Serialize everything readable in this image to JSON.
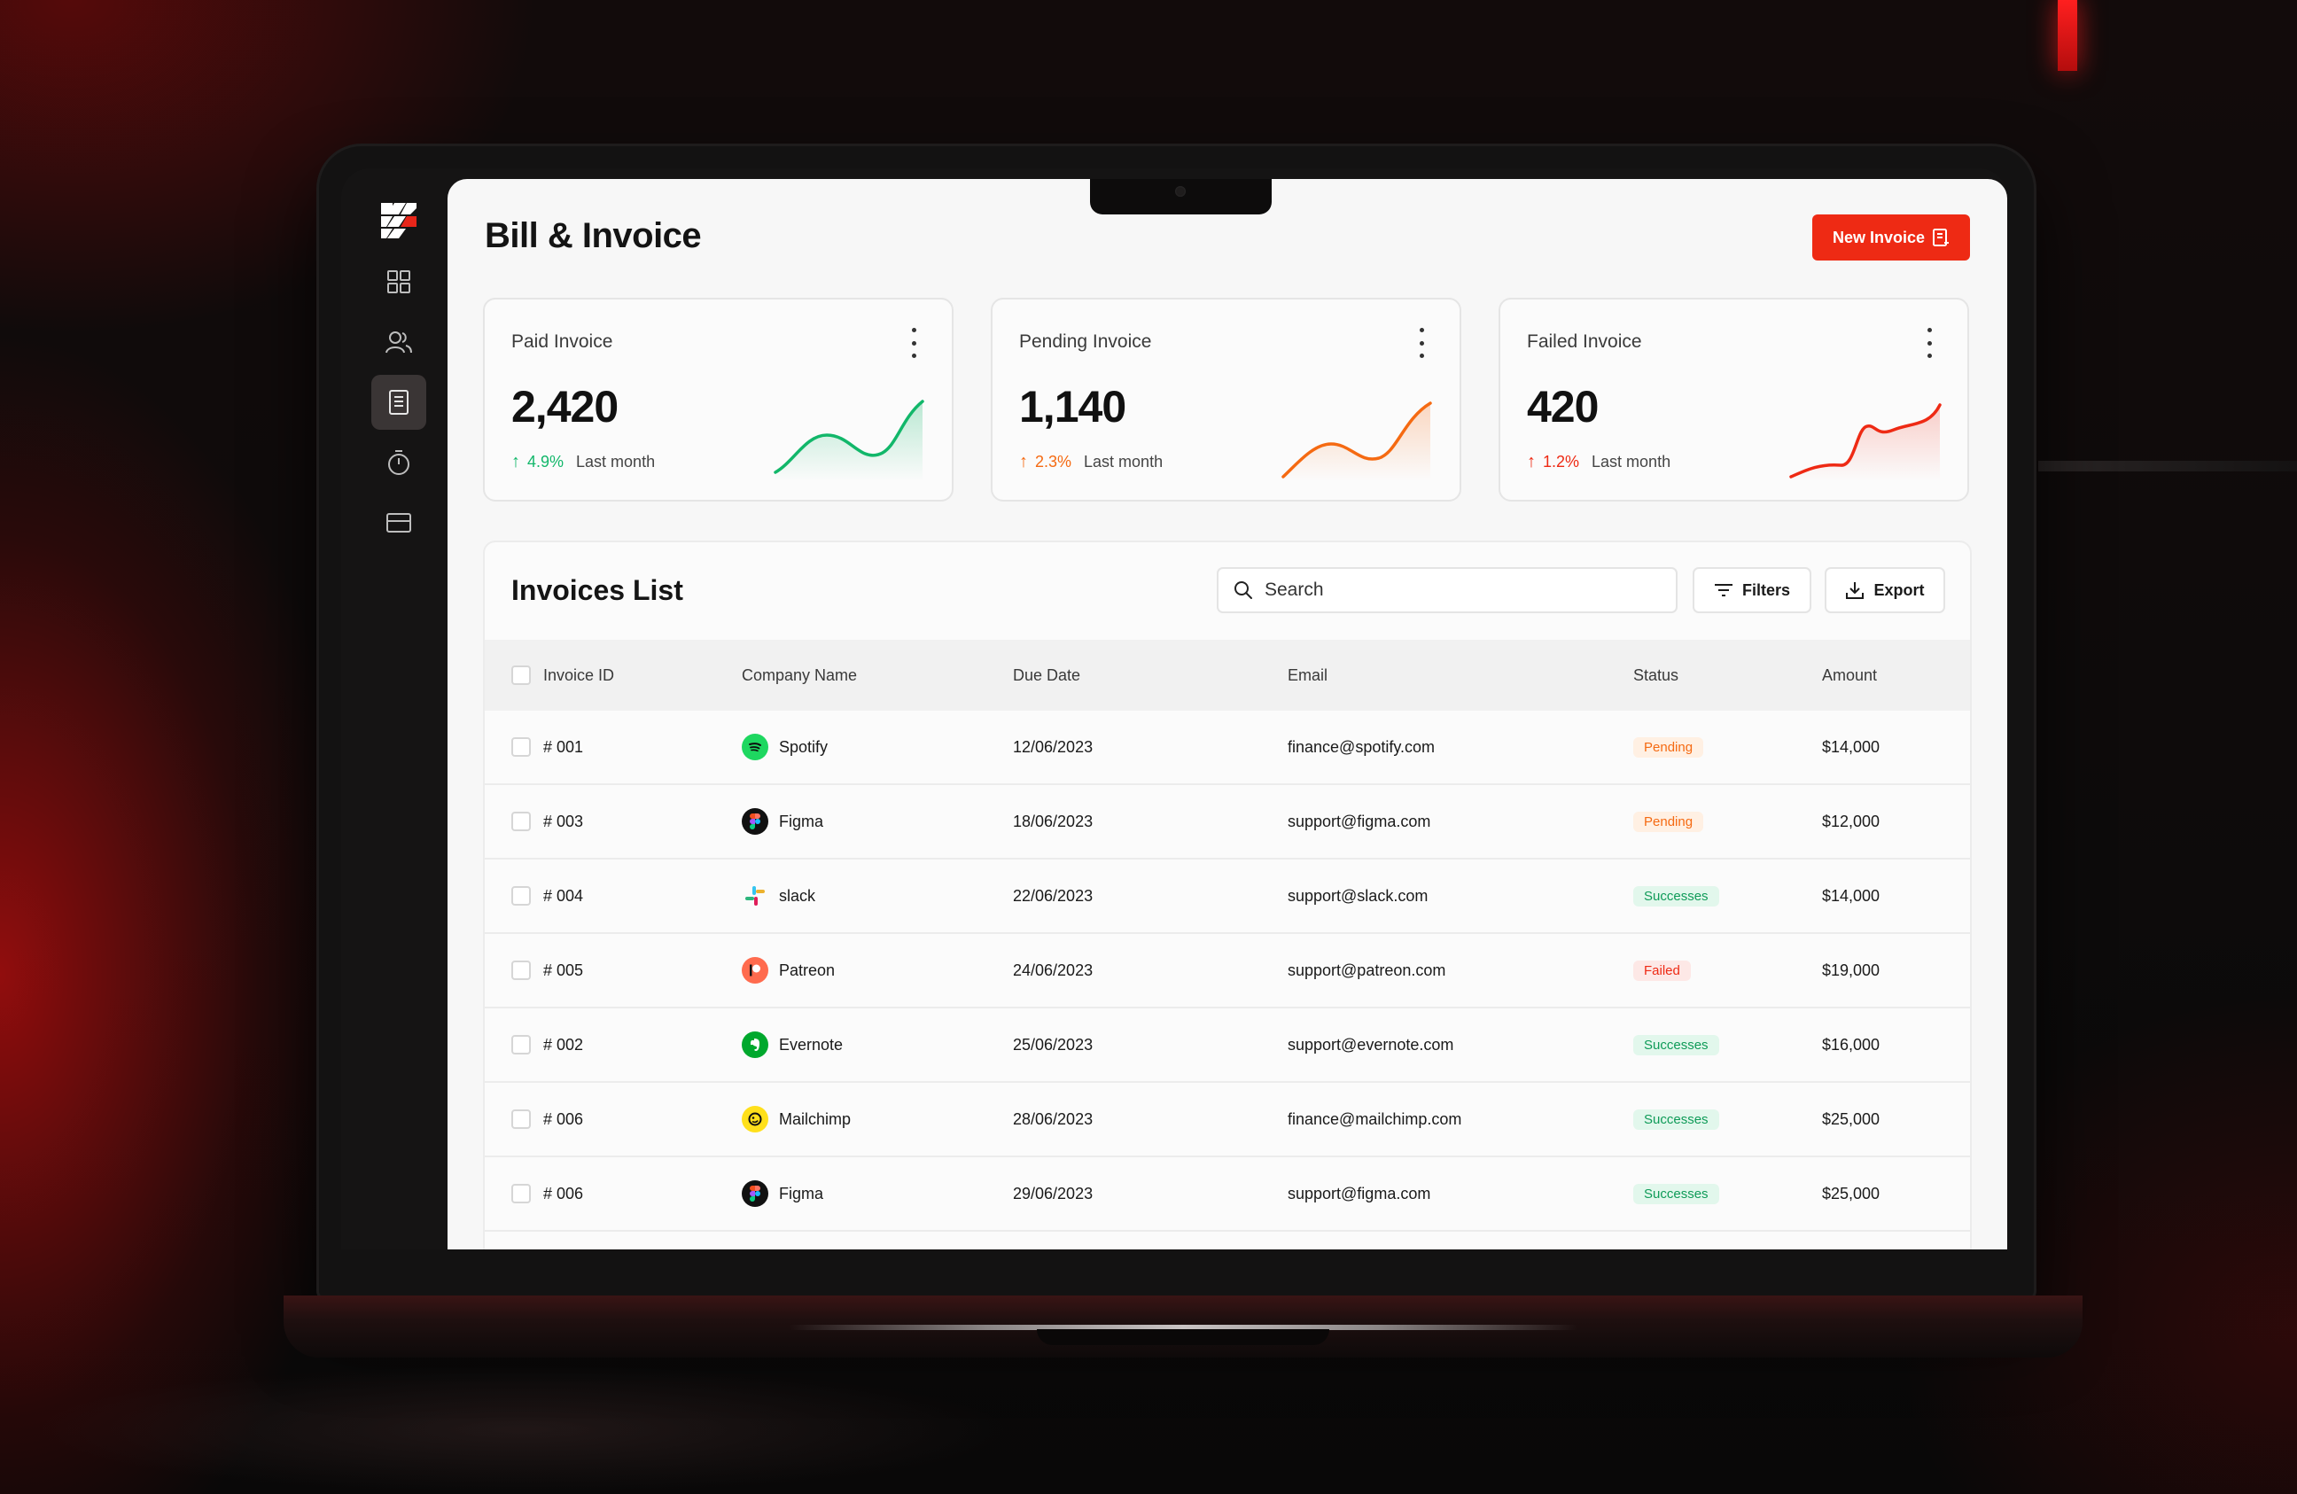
{
  "page": {
    "title": "Bill & Invoice",
    "new_invoice_label": "New Invoice"
  },
  "sidebar": {
    "items": [
      {
        "icon": "grid-icon",
        "active": false
      },
      {
        "icon": "users-icon",
        "active": false
      },
      {
        "icon": "document-icon",
        "active": true
      },
      {
        "icon": "timer-icon",
        "active": false
      },
      {
        "icon": "card-icon",
        "active": false
      }
    ]
  },
  "stats": [
    {
      "label": "Paid Invoice",
      "value": "2,420",
      "pct": "4.9%",
      "period": "Last month",
      "color": "#12b76a"
    },
    {
      "label": "Pending Invoice",
      "value": "1,140",
      "pct": "2.3%",
      "period": "Last month",
      "color": "#f56a12"
    },
    {
      "label": "Failed Invoice",
      "value": "420",
      "pct": "1.2%",
      "period": "Last month",
      "color": "#ee2a14"
    }
  ],
  "invoices": {
    "title": "Invoices List",
    "search_placeholder": "Search",
    "filters_label": "Filters",
    "export_label": "Export",
    "columns": {
      "id": "Invoice ID",
      "company": "Company Name",
      "due": "Due Date",
      "email": "Email",
      "status": "Status",
      "amount": "Amount"
    },
    "rows": [
      {
        "id": "# 001",
        "company": "Spotify",
        "due": "12/06/2023",
        "email": "finance@spotify.com",
        "status": "Pending",
        "amount": "$14,000"
      },
      {
        "id": "# 003",
        "company": "Figma",
        "due": "18/06/2023",
        "email": "support@figma.com",
        "status": "Pending",
        "amount": "$12,000"
      },
      {
        "id": "# 004",
        "company": "slack",
        "due": "22/06/2023",
        "email": "support@slack.com",
        "status": "Successes",
        "amount": "$14,000"
      },
      {
        "id": "# 005",
        "company": "Patreon",
        "due": "24/06/2023",
        "email": "support@patreon.com",
        "status": "Failed",
        "amount": "$19,000"
      },
      {
        "id": "# 002",
        "company": "Evernote",
        "due": "25/06/2023",
        "email": "support@evernote.com",
        "status": "Successes",
        "amount": "$16,000"
      },
      {
        "id": "# 006",
        "company": "Mailchimp",
        "due": "28/06/2023",
        "email": "finance@mailchimp.com",
        "status": "Successes",
        "amount": "$25,000"
      },
      {
        "id": "# 006",
        "company": "Figma",
        "due": "29/06/2023",
        "email": "support@figma.com",
        "status": "Successes",
        "amount": "$25,000"
      }
    ]
  },
  "colors": {
    "accent": "#ee2a14",
    "pending": "#f56a12",
    "success": "#12b76a",
    "failed": "#ee2a14"
  }
}
